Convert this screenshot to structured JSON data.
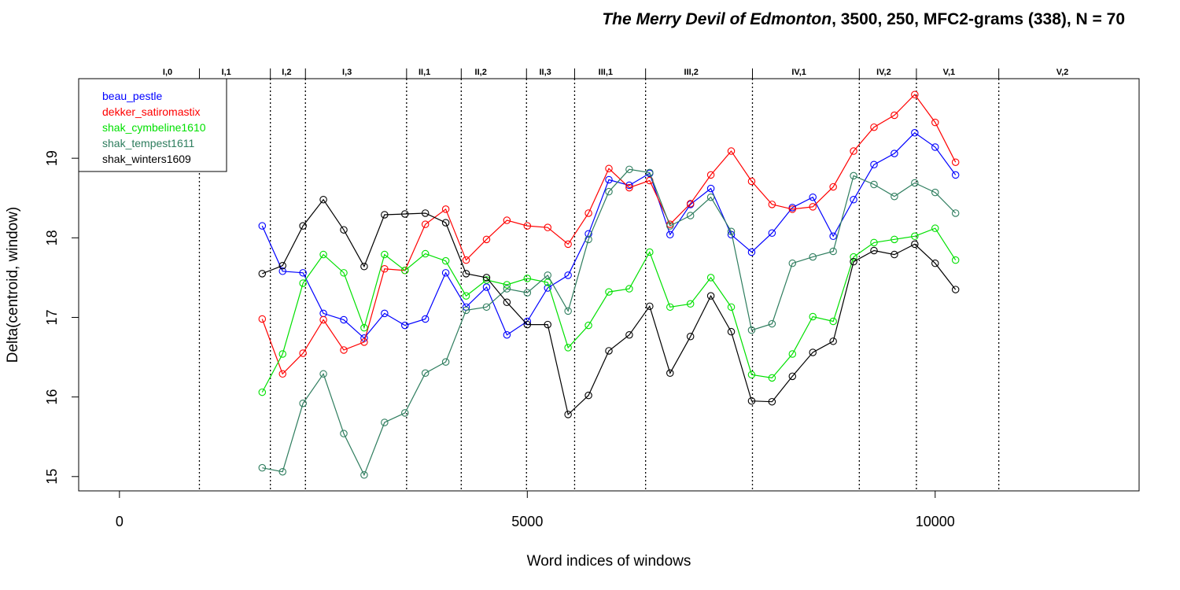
{
  "chart_data": {
    "type": "line",
    "title": {
      "italic": "The Merry Devil of Edmonton",
      "rest": ", 3500, 250, MFC2-grams (338), N = 70"
    },
    "xlabel": "Word indices of windows",
    "ylabel": "Delta(centroid, window)",
    "xlim": [
      -500,
      12500
    ],
    "ylim": [
      14.82,
      20.0
    ],
    "xticks": [
      0,
      5000,
      10000
    ],
    "xtick_labels": [
      "0",
      "5000",
      "10000"
    ],
    "yticks": [
      15,
      16,
      17,
      18,
      19
    ],
    "ytick_labels": [
      "15",
      "16",
      "17",
      "18",
      "19"
    ],
    "grid": false,
    "legend_position": "top-left",
    "act_scene_boundaries": [
      980,
      1850,
      2280,
      3520,
      4190,
      4990,
      5580,
      6450,
      7760,
      9070,
      9770,
      10780
    ],
    "act_scene_labels": [
      {
        "label": "I,0",
        "x": 590
      },
      {
        "label": "I,1",
        "x": 1310
      },
      {
        "label": "I,2",
        "x": 2050
      },
      {
        "label": "I,3",
        "x": 2790
      },
      {
        "label": "II,1",
        "x": 3740
      },
      {
        "label": "II,2",
        "x": 4430
      },
      {
        "label": "II,3",
        "x": 5220
      },
      {
        "label": "III,1",
        "x": 5960
      },
      {
        "label": "III,2",
        "x": 7010
      },
      {
        "label": "IV,1",
        "x": 8330
      },
      {
        "label": "IV,2",
        "x": 9370
      },
      {
        "label": "V,1",
        "x": 10170
      },
      {
        "label": "V,2",
        "x": 11560
      }
    ],
    "x": [
      1750,
      2000,
      2250,
      2500,
      2750,
      3000,
      3250,
      3500,
      3750,
      4000,
      4250,
      4500,
      4750,
      5000,
      5250,
      5500,
      5750,
      6000,
      6250,
      6500,
      6750,
      7000,
      7250,
      7500,
      7750,
      8000,
      8250,
      8500,
      8750,
      9000,
      9250,
      9500,
      9750,
      10000,
      10250
    ],
    "series": [
      {
        "name": "beau_pestle",
        "color": "#0000ff",
        "values": [
          18.15,
          17.58,
          17.56,
          17.05,
          16.97,
          16.74,
          17.05,
          16.9,
          16.98,
          17.56,
          17.13,
          17.38,
          16.78,
          16.95,
          17.37,
          17.53,
          18.05,
          18.73,
          18.66,
          18.81,
          18.04,
          18.42,
          18.62,
          18.04,
          17.82,
          18.06,
          18.38,
          18.51,
          18.02,
          18.48,
          18.92,
          19.06,
          19.32,
          19.14,
          18.79
        ]
      },
      {
        "name": "dekker_satiromastix",
        "color": "#ff0000",
        "values": [
          16.98,
          16.29,
          16.55,
          16.97,
          16.59,
          16.69,
          17.61,
          17.59,
          18.17,
          18.36,
          17.72,
          17.98,
          18.22,
          18.15,
          18.13,
          17.92,
          18.31,
          18.87,
          18.63,
          18.72,
          18.17,
          18.43,
          18.79,
          19.09,
          18.71,
          18.42,
          18.36,
          18.39,
          18.64,
          19.09,
          19.39,
          19.54,
          19.8,
          19.45,
          18.95
        ]
      },
      {
        "name": "shak_cymbeline1610",
        "color": "#00e000",
        "values": [
          16.06,
          16.54,
          17.43,
          17.79,
          17.56,
          16.87,
          17.79,
          17.59,
          17.8,
          17.71,
          17.27,
          17.47,
          17.41,
          17.49,
          17.44,
          16.62,
          16.9,
          17.32,
          17.36,
          17.82,
          17.13,
          17.17,
          17.5,
          17.13,
          16.28,
          16.24,
          16.54,
          17.01,
          16.95,
          17.76,
          17.94,
          17.98,
          18.02,
          18.12,
          17.72
        ]
      },
      {
        "name": "shak_tempest1611",
        "color": "#2e7d5e",
        "values": [
          15.11,
          15.06,
          15.92,
          16.29,
          15.54,
          15.02,
          15.68,
          15.8,
          16.3,
          16.44,
          17.09,
          17.13,
          17.36,
          17.31,
          17.53,
          17.08,
          17.98,
          18.58,
          18.86,
          18.82,
          18.15,
          18.28,
          18.51,
          18.08,
          16.84,
          16.92,
          17.68,
          17.76,
          17.83,
          18.78,
          18.67,
          18.52,
          18.69,
          18.57,
          18.31
        ]
      },
      {
        "name": "shak_winters1609",
        "color": "#000000",
        "values": [
          17.55,
          17.65,
          18.15,
          18.48,
          18.1,
          17.64,
          18.29,
          18.3,
          18.31,
          18.19,
          17.55,
          17.5,
          17.19,
          16.91,
          16.91,
          15.78,
          16.02,
          16.58,
          16.78,
          17.14,
          16.3,
          16.76,
          17.27,
          16.82,
          15.95,
          15.94,
          16.26,
          16.56,
          16.7,
          17.7,
          17.84,
          17.79,
          17.92,
          17.68,
          17.35
        ]
      }
    ]
  }
}
